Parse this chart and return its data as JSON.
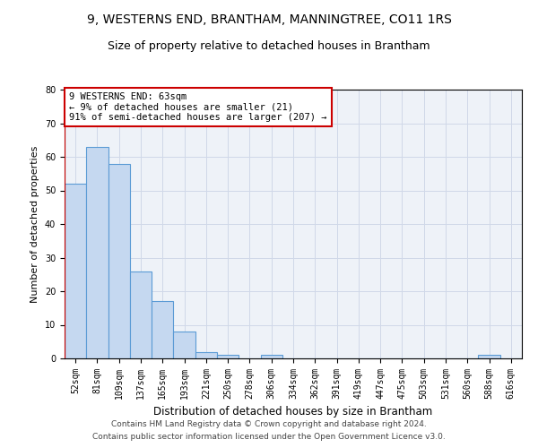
{
  "title1": "9, WESTERNS END, BRANTHAM, MANNINGTREE, CO11 1RS",
  "title2": "Size of property relative to detached houses in Brantham",
  "xlabel": "Distribution of detached houses by size in Brantham",
  "ylabel": "Number of detached properties",
  "categories": [
    "52sqm",
    "81sqm",
    "109sqm",
    "137sqm",
    "165sqm",
    "193sqm",
    "221sqm",
    "250sqm",
    "278sqm",
    "306sqm",
    "334sqm",
    "362sqm",
    "391sqm",
    "419sqm",
    "447sqm",
    "475sqm",
    "503sqm",
    "531sqm",
    "560sqm",
    "588sqm",
    "616sqm"
  ],
  "values": [
    52,
    63,
    58,
    26,
    17,
    8,
    2,
    1,
    0,
    1,
    0,
    0,
    0,
    0,
    0,
    0,
    0,
    0,
    0,
    1,
    0
  ],
  "bar_color": "#c5d8f0",
  "bar_edge_color": "#5b9bd5",
  "grid_color": "#d0d8e8",
  "ax_bg_color": "#eef2f8",
  "background_color": "#ffffff",
  "annotation_box_text": "9 WESTERNS END: 63sqm\n← 9% of detached houses are smaller (21)\n91% of semi-detached houses are larger (207) →",
  "annotation_box_color": "#ffffff",
  "annotation_box_edge_color": "#cc0000",
  "vline_color": "#cc0000",
  "ylim": [
    0,
    80
  ],
  "yticks": [
    0,
    10,
    20,
    30,
    40,
    50,
    60,
    70,
    80
  ],
  "footer1": "Contains HM Land Registry data © Crown copyright and database right 2024.",
  "footer2": "Contains public sector information licensed under the Open Government Licence v3.0.",
  "title1_fontsize": 10,
  "title2_fontsize": 9,
  "xlabel_fontsize": 8.5,
  "ylabel_fontsize": 8,
  "tick_fontsize": 7,
  "annotation_fontsize": 7.5,
  "footer_fontsize": 6.5
}
